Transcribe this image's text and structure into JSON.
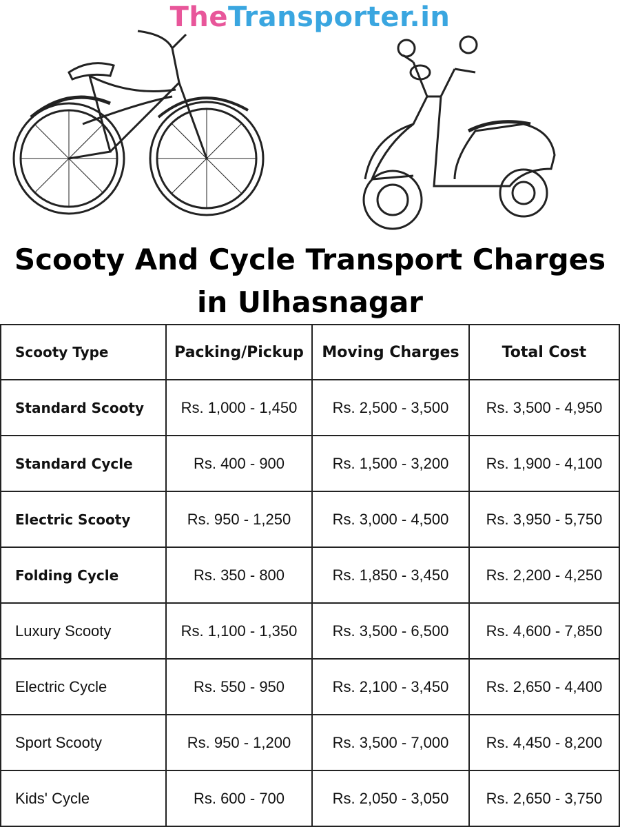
{
  "brand": [
    "The",
    "Transporter.in"
  ],
  "title": "Scooty And Cycle Transport Charges in Ulhasnagar",
  "table": {
    "header": [
      "Scooty Type",
      "Packing/Pickup",
      "Moving Charges",
      "Total Cost"
    ],
    "rows": [
      [
        "Standard Scooty",
        "Rs. 1,000 - 1,450",
        "Rs. 2,500 - 3,500",
        "Rs. 3,500 - 4,950"
      ],
      [
        "Standard Cycle",
        "Rs. 400 - 900",
        "Rs. 1,500 - 3,200",
        "Rs. 1,900 - 4,100"
      ],
      [
        "Electric Scooty",
        "Rs. 950 - 1,250",
        "Rs. 3,000 - 4,500",
        "Rs. 3,950 - 5,750"
      ],
      [
        "Folding Cycle",
        "Rs. 350 - 800",
        "Rs. 1,850 - 3,450",
        "Rs. 2,200 - 4,250"
      ],
      [
        "Luxury Scooty",
        "Rs. 1,100 - 1,350",
        "Rs. 3,500 - 6,500",
        "Rs. 4,600 - 7,850"
      ],
      [
        "Electric Cycle",
        "Rs. 550 - 950",
        "Rs. 2,100 - 3,450",
        "Rs. 2,650 - 4,400"
      ],
      [
        "Sport Scooty",
        "Rs. 950 - 1,200",
        "Rs. 3,500 - 7,000",
        "Rs. 4,450 - 8,200"
      ],
      [
        "Kids' Cycle",
        "Rs. 600 - 700",
        "Rs. 2,050 - 3,050",
        "Rs. 2,650 - 3,750"
      ]
    ]
  }
}
